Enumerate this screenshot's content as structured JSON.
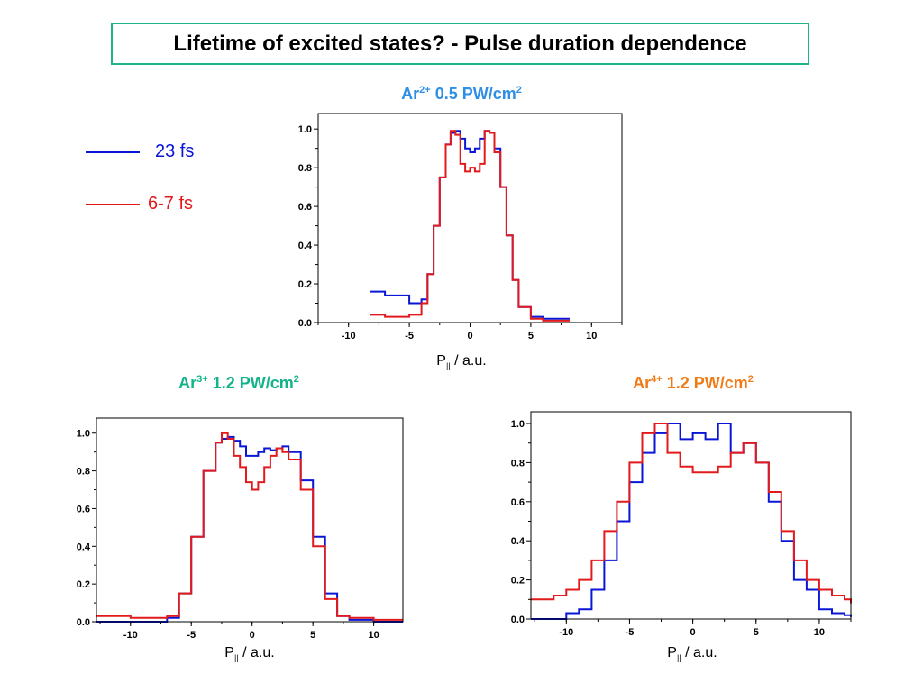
{
  "title": "Lifetime of excited states? - Pulse duration dependence",
  "legend": {
    "items": [
      {
        "label": "23 fs",
        "color": "#0a16d6"
      },
      {
        "label": "6-7 fs",
        "color": "#e31a1c"
      }
    ]
  },
  "colors": {
    "frame": "#1fb38a",
    "blue": "#0a16d6",
    "red": "#e31a1c",
    "title_ar2": "#2f8fe6",
    "title_ar3": "#13b38a",
    "title_ar4": "#f07a14"
  },
  "chart_data": [
    {
      "type": "line",
      "title": {
        "base": "Ar",
        "sup": "2+",
        "rest": " 0.5 PW/cm",
        "sup2": "2"
      },
      "xlabel": {
        "base": "P",
        "sub": "||",
        "rest": " / a.u."
      },
      "xlim": [
        -12.5,
        12.5
      ],
      "ylim": [
        0.0,
        1.08
      ],
      "xticks": [
        "-10",
        "-5",
        "0",
        "5",
        "10"
      ],
      "yticks": [
        "0.0",
        "0.2",
        "0.4",
        "0.6",
        "0.8",
        "1.0"
      ],
      "series": [
        {
          "name": "23 fs",
          "color": "#0a16d6",
          "x": [
            -8.2,
            -7.0,
            -5.0,
            -4.0,
            -3.5,
            -3.0,
            -2.5,
            -2.0,
            -1.6,
            -1.2,
            -0.8,
            -0.4,
            0.0,
            0.4,
            0.8,
            1.2,
            1.6,
            2.0,
            2.5,
            3.0,
            3.5,
            4.0,
            5.0,
            6.0,
            7.0,
            8.2
          ],
          "y": [
            0.16,
            0.14,
            0.1,
            0.12,
            0.25,
            0.5,
            0.75,
            0.92,
            0.98,
            0.99,
            0.95,
            0.9,
            0.88,
            0.9,
            0.95,
            0.99,
            0.98,
            0.9,
            0.7,
            0.45,
            0.22,
            0.08,
            0.03,
            0.02,
            0.02,
            0.02
          ]
        },
        {
          "name": "6-7 fs",
          "color": "#e31a1c",
          "x": [
            -8.2,
            -7.0,
            -5.0,
            -4.0,
            -3.5,
            -3.0,
            -2.5,
            -2.0,
            -1.6,
            -1.2,
            -0.8,
            -0.4,
            0.0,
            0.4,
            0.8,
            1.2,
            1.6,
            2.0,
            2.5,
            3.0,
            3.5,
            4.0,
            5.0,
            6.0,
            7.0,
            8.2
          ],
          "y": [
            0.04,
            0.03,
            0.04,
            0.1,
            0.25,
            0.5,
            0.75,
            0.92,
            0.99,
            0.97,
            0.82,
            0.78,
            0.8,
            0.78,
            0.82,
            0.99,
            0.98,
            0.88,
            0.7,
            0.45,
            0.22,
            0.08,
            0.02,
            0.01,
            0.01,
            0.01
          ]
        }
      ]
    },
    {
      "type": "line",
      "title": {
        "base": "Ar",
        "sup": "3+",
        "rest": " 1.2 PW/cm",
        "sup2": "2"
      },
      "xlabel": {
        "base": "P",
        "sub": "||",
        "rest": " / a.u."
      },
      "xlim": [
        -12.8,
        12.4
      ],
      "ylim": [
        0.0,
        1.08
      ],
      "xticks": [
        "-10",
        "-5",
        "0",
        "5",
        "10"
      ],
      "yticks": [
        "0.0",
        "0.2",
        "0.4",
        "0.6",
        "0.8",
        "1.0"
      ],
      "series": [
        {
          "name": "23 fs",
          "color": "#0a16d6",
          "x": [
            -12.8,
            -10.0,
            -8.0,
            -7.0,
            -6.0,
            -5.0,
            -4.0,
            -3.0,
            -2.5,
            -2.0,
            -1.5,
            -1.0,
            -0.5,
            0.0,
            0.5,
            1.0,
            1.5,
            2.0,
            2.5,
            3.0,
            4.0,
            5.0,
            6.0,
            7.0,
            8.0,
            10.0,
            12.4
          ],
          "y": [
            0.0,
            0.0,
            0.0,
            0.02,
            0.15,
            0.45,
            0.8,
            0.95,
            0.97,
            0.98,
            0.96,
            0.93,
            0.88,
            0.88,
            0.9,
            0.92,
            0.91,
            0.92,
            0.93,
            0.9,
            0.75,
            0.45,
            0.15,
            0.03,
            0.01,
            0.0,
            0.0
          ]
        },
        {
          "name": "6-7 fs",
          "color": "#e31a1c",
          "x": [
            -12.8,
            -10.0,
            -8.0,
            -7.0,
            -6.0,
            -5.0,
            -4.0,
            -3.0,
            -2.5,
            -2.0,
            -1.5,
            -1.0,
            -0.5,
            0.0,
            0.5,
            1.0,
            1.5,
            2.0,
            2.5,
            3.0,
            4.0,
            5.0,
            6.0,
            7.0,
            8.0,
            10.0,
            12.4
          ],
          "y": [
            0.03,
            0.02,
            0.02,
            0.03,
            0.15,
            0.45,
            0.8,
            0.95,
            1.0,
            0.97,
            0.88,
            0.82,
            0.74,
            0.7,
            0.74,
            0.82,
            0.88,
            0.92,
            0.9,
            0.86,
            0.7,
            0.4,
            0.12,
            0.03,
            0.02,
            0.01,
            0.01
          ]
        }
      ]
    },
    {
      "type": "line",
      "title": {
        "base": "Ar",
        "sup": "4+",
        "rest": " 1.2 PW/cm",
        "sup2": "2"
      },
      "xlabel": {
        "base": "P",
        "sub": "||",
        "rest": " / a.u."
      },
      "xlim": [
        -12.8,
        12.5
      ],
      "ylim": [
        0.0,
        1.06
      ],
      "xticks": [
        "-10",
        "-5",
        "0",
        "5",
        "10"
      ],
      "yticks": [
        "0.0",
        "0.2",
        "0.4",
        "0.6",
        "0.8",
        "1.0"
      ],
      "series": [
        {
          "name": "23 fs",
          "color": "#0a16d6",
          "x": [
            -12.8,
            -12.0,
            -11.0,
            -10.0,
            -9.0,
            -8.0,
            -7.0,
            -6.0,
            -5.0,
            -4.0,
            -3.0,
            -2.0,
            -1.0,
            0.0,
            1.0,
            2.0,
            3.0,
            4.0,
            5.0,
            6.0,
            7.0,
            8.0,
            9.0,
            10.0,
            11.0,
            12.0,
            12.5
          ],
          "y": [
            0.0,
            0.0,
            0.0,
            0.03,
            0.05,
            0.15,
            0.3,
            0.5,
            0.7,
            0.85,
            0.95,
            1.0,
            0.92,
            0.95,
            0.92,
            1.0,
            0.85,
            0.9,
            0.8,
            0.6,
            0.4,
            0.2,
            0.15,
            0.05,
            0.03,
            0.02,
            0.01
          ]
        },
        {
          "name": "6-7 fs",
          "color": "#e31a1c",
          "x": [
            -12.8,
            -12.0,
            -11.0,
            -10.0,
            -9.0,
            -8.0,
            -7.0,
            -6.0,
            -5.0,
            -4.0,
            -3.0,
            -2.0,
            -1.0,
            0.0,
            1.0,
            2.0,
            3.0,
            4.0,
            5.0,
            6.0,
            7.0,
            8.0,
            9.0,
            10.0,
            11.0,
            12.0,
            12.5
          ],
          "y": [
            0.1,
            0.1,
            0.12,
            0.15,
            0.2,
            0.3,
            0.45,
            0.6,
            0.8,
            0.95,
            1.0,
            0.85,
            0.78,
            0.75,
            0.75,
            0.78,
            0.85,
            0.9,
            0.8,
            0.65,
            0.45,
            0.3,
            0.2,
            0.15,
            0.12,
            0.1,
            0.08
          ]
        }
      ]
    }
  ]
}
